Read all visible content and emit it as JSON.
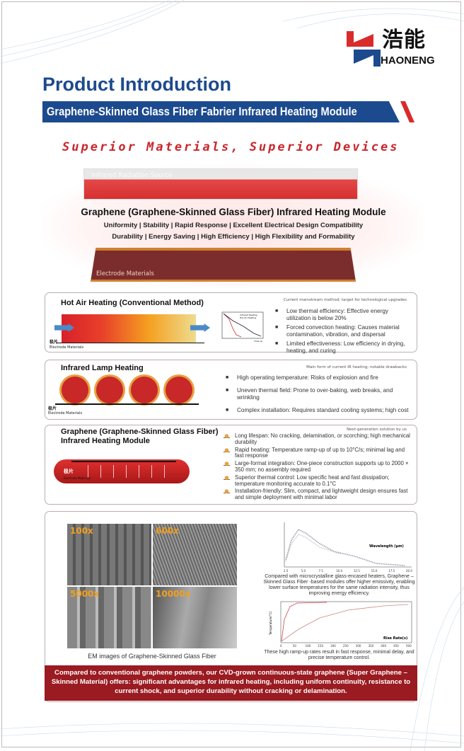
{
  "brand": {
    "name_cn": "浩能",
    "name_en": "HAONENG",
    "colors": {
      "red": "#d92b2b",
      "blue": "#1c4a8e"
    }
  },
  "header": {
    "title": "Product Introduction",
    "banner": "Graphene-Skinned Glass Fiber Fabrier Infrared Heating Module",
    "slogan": "Superior Materials, Superior Devices"
  },
  "hero": {
    "top_label": "Infrared Radiation Source",
    "title": "Graphene (Graphene-Skinned Glass Fiber) Infrared Heating Module",
    "features_1": "Uniformity  |  Stability  |  Rapid Response  |  Excellent Electrical Design Compatibility",
    "features_2": "Durability  |  Energy Saving  |  High Efficiency  |  High Flexibility and Formability",
    "bottom_label": "Electrode Materials"
  },
  "hot_air": {
    "title": "Hot Air Heating (Conventional Method)",
    "note": "Current mainstream method; target for technological upgrades",
    "electrode_cn": "极片",
    "electrode_en": "Electrode Materials",
    "legend": [
      "Infrared Heating",
      "Hot Air Heating"
    ],
    "axis_x": "Time (s)",
    "points": [
      "Low thermal efficiency: Effective energy utilization is below 20%",
      "Forced convection heating: Causes material contamination, vibration, and dispersal",
      "Limited effectiveness: Low efficiency in drying, heating, and curing"
    ]
  },
  "lamp": {
    "title": "Infrared Lamp Heating",
    "note": "Main form of current IR heating; notable drawbacks",
    "electrode_cn": "极片",
    "electrode_en": "Electrode Materials",
    "points": [
      "High operating temperature: Risks of explosion and fire",
      "Uneven thermal field: Prone to over-baking, web breaks, and wrinkling",
      "Complex installation: Requires standard cooling systems; high cost"
    ]
  },
  "graphene": {
    "title_1": "Graphene (Graphene-Skinned Glass Fiber)",
    "title_2": "Infrared Heating Module",
    "note": "Next-generation solution by us",
    "electrode_cn": "极片",
    "electrode_en": "Electrode Materials",
    "points": [
      "Long lifespan: No cracking, delamination, or scorching; high mechanical durability",
      "Rapid heating: Temperature ramp-up of up to 10°C/s; minimal lag and fast response",
      "Large-format integration: One-piece construction supports up to 2000 × 350 mm; no assembly required",
      "Superior thermal control: Low specific heat and fast dissipation; temperature monitoring accurate to 0.1°C",
      "Installation-friendly: Slim, compact, and lightweight design ensures fast and simple deployment with minimal labor"
    ]
  },
  "sem": {
    "labels": [
      "100x",
      "600x",
      "5000x",
      "10000x"
    ],
    "caption": "EM images of Graphene-Skinned Glass Fiber"
  },
  "emissivity_chart": {
    "xlabel": "Wavelength (μm)",
    "xticks": [
      "2.5",
      "5.0",
      "7.5",
      "10.0",
      "12.5",
      "15.0",
      "17.5",
      "20.0"
    ],
    "caption": "Compared with microcrystalline glass-encased heaters, Graphene – Skinned Glass Fiber -based modules offer higher emissivity, enabling lower surface temperatures for the same radiation intensity, thus improving energy efficiency."
  },
  "ramp_chart": {
    "xlabel": "Rise Rate(s)",
    "ylabel": "Temperature(°C)",
    "xticks": [
      "0",
      "50",
      "100",
      "150",
      "200",
      "250",
      "300",
      "350",
      "400",
      "450",
      "500"
    ],
    "caption": "These high ramp-up rates result in fast response, minimal delay, and precise temperature control."
  },
  "footer": {
    "text": "Compared to conventional graphene powders, our CVD-grown continuous-state graphene (Super Graphene – Skinned Material) offers: significant advantages for infrared heating, including uniform continuity, resistance to current shock, and superior durability without cracking or delamination."
  }
}
